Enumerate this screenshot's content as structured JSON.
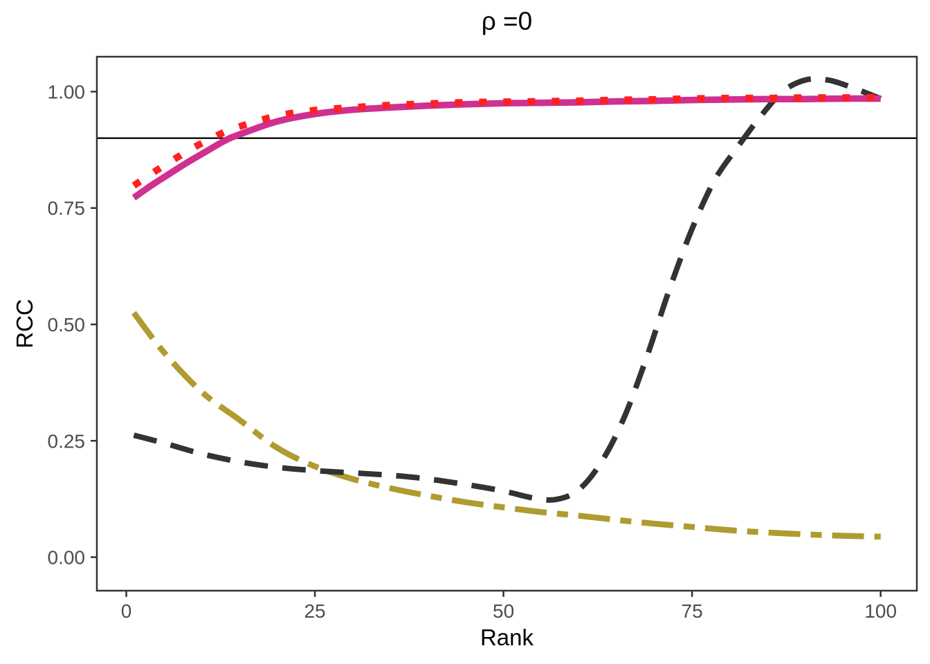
{
  "chart_data": {
    "type": "line",
    "title": "ρ =0",
    "xlabel": "Rank",
    "ylabel": "RCC",
    "legend": "none",
    "grid": "off",
    "xlim": [
      -3.9,
      104.8
    ],
    "ylim": [
      -0.072,
      1.075
    ],
    "x_ticks": [
      {
        "value": 0,
        "label": "0"
      },
      {
        "value": 25,
        "label": "25"
      },
      {
        "value": 50,
        "label": "50"
      },
      {
        "value": 75,
        "label": "75"
      },
      {
        "value": 100,
        "label": "100"
      }
    ],
    "y_ticks": [
      {
        "value": 0.0,
        "label": "0.00"
      },
      {
        "value": 0.25,
        "label": "0.25"
      },
      {
        "value": 0.5,
        "label": "0.50"
      },
      {
        "value": 0.75,
        "label": "0.75"
      },
      {
        "value": 1.0,
        "label": "1.00"
      }
    ],
    "reference_line_y": 0.9,
    "style": {
      "background": "#FFFFFF",
      "panel_border_color": "#333333",
      "tick_color": "#333333",
      "tick_label_color": "#4D4D4D",
      "axis_title_color": "#000000",
      "reference_line_color": "#111111"
    },
    "series": [
      {
        "name": "olive-dotdash",
        "color": "#B09B30",
        "linetype": "dotdash",
        "x": [
          1,
          5,
          10,
          15,
          20,
          25,
          30,
          35,
          40,
          45,
          50,
          55,
          60,
          65,
          70,
          75,
          80,
          85,
          90,
          95,
          100
        ],
        "y": [
          0.525,
          0.44,
          0.355,
          0.295,
          0.235,
          0.195,
          0.168,
          0.148,
          0.132,
          0.118,
          0.107,
          0.097,
          0.089,
          0.08,
          0.072,
          0.065,
          0.058,
          0.053,
          0.049,
          0.046,
          0.044
        ]
      },
      {
        "name": "black-dashed",
        "color": "#333333",
        "linetype": "dashed",
        "x": [
          1,
          5,
          10,
          15,
          20,
          25,
          30,
          35,
          40,
          45,
          50,
          54,
          57,
          60,
          63,
          66,
          69,
          72,
          75,
          78,
          81,
          84,
          87,
          90,
          93,
          96,
          100
        ],
        "y": [
          0.262,
          0.245,
          0.222,
          0.205,
          0.193,
          0.186,
          0.181,
          0.176,
          0.168,
          0.156,
          0.142,
          0.127,
          0.124,
          0.145,
          0.205,
          0.3,
          0.43,
          0.575,
          0.705,
          0.81,
          0.88,
          0.945,
          1.0,
          1.025,
          1.025,
          1.01,
          0.985
        ]
      },
      {
        "name": "pink-solid",
        "color": "#D0308F",
        "linetype": "solid",
        "x": [
          1,
          3,
          5,
          8,
          10,
          13,
          15,
          20,
          25,
          30,
          35,
          40,
          45,
          50,
          55,
          60,
          65,
          70,
          75,
          80,
          85,
          90,
          95,
          100
        ],
        "y": [
          0.772,
          0.795,
          0.816,
          0.847,
          0.866,
          0.894,
          0.908,
          0.936,
          0.952,
          0.961,
          0.966,
          0.97,
          0.973,
          0.975,
          0.976,
          0.977,
          0.979,
          0.98,
          0.982,
          0.983,
          0.984,
          0.984,
          0.985,
          0.985
        ]
      },
      {
        "name": "red-dotted",
        "color": "#FF2020",
        "linetype": "dotted",
        "x": [
          1,
          3,
          5,
          8,
          10,
          13,
          15,
          20,
          25,
          30,
          35,
          40,
          45,
          50,
          55,
          60,
          65,
          70,
          75,
          80,
          85,
          90,
          95,
          100
        ],
        "y": [
          0.798,
          0.82,
          0.841,
          0.871,
          0.889,
          0.913,
          0.925,
          0.948,
          0.96,
          0.966,
          0.971,
          0.974,
          0.977,
          0.978,
          0.979,
          0.98,
          0.982,
          0.983,
          0.985,
          0.986,
          0.986,
          0.987,
          0.987,
          0.988
        ]
      }
    ]
  }
}
